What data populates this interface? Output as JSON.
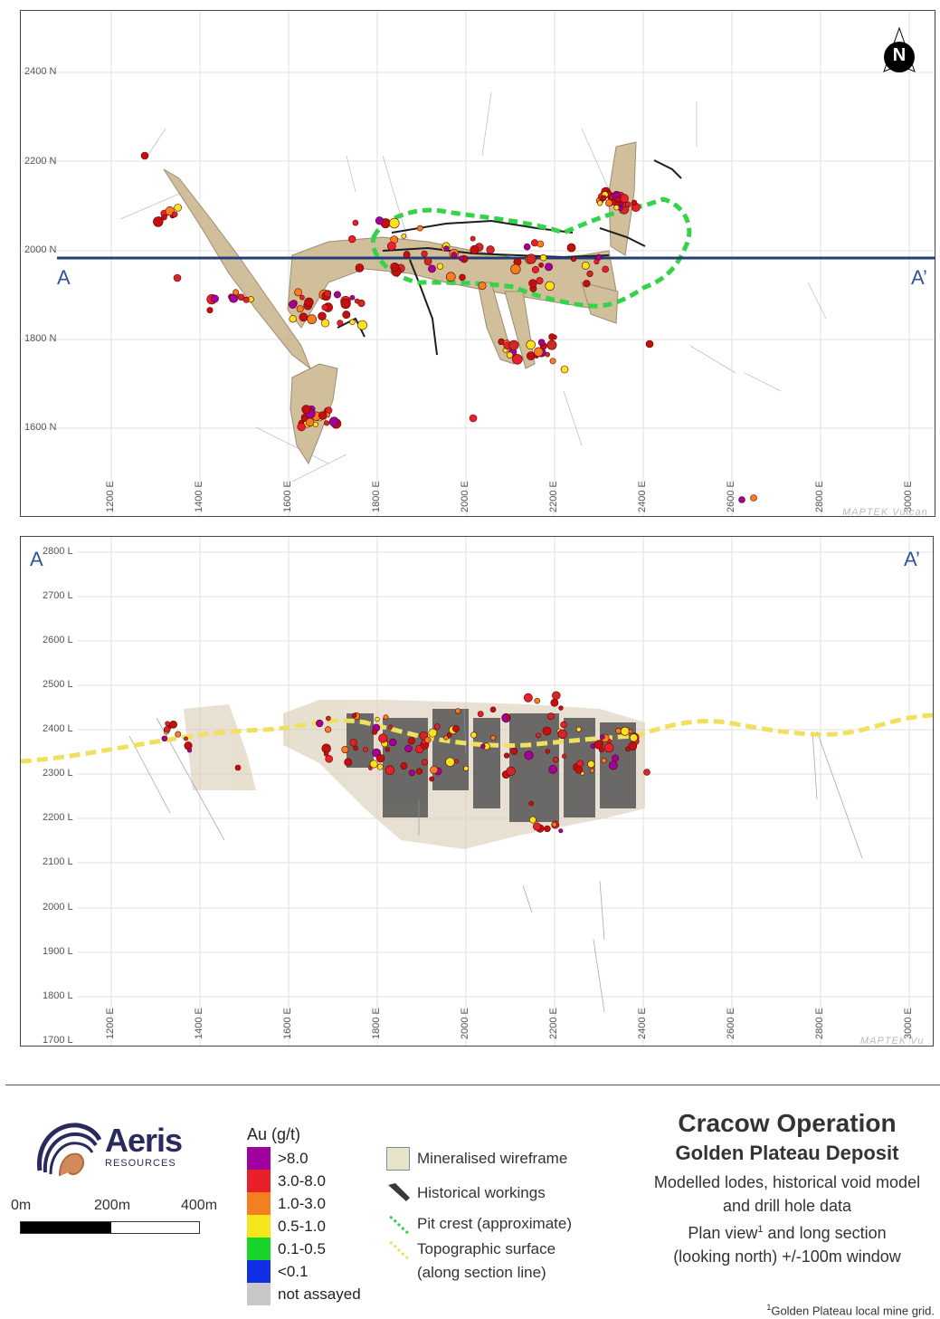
{
  "plan_view": {
    "northings": [
      "2400 N",
      "2200 N",
      "2000 N",
      "1800 N",
      "1600 N"
    ],
    "eastings": [
      "1200 E",
      "1400 E",
      "1600 E",
      "1800 E",
      "2000 E",
      "2200 E",
      "2400 E",
      "2600 E",
      "2800 E",
      "3000 E"
    ],
    "section_start": "A",
    "section_end": "A’",
    "north_label": "N",
    "watermark": "MAPTEK Vulcan"
  },
  "long_section": {
    "levels": [
      "2800 L",
      "2700 L",
      "2600 L",
      "2500 L",
      "2400 L",
      "2300 L",
      "2200 L",
      "2100 L",
      "2000 L",
      "1900 L",
      "1800 L",
      "1700 L"
    ],
    "eastings": [
      "1200 E",
      "1400 E",
      "1600 E",
      "1800 E",
      "2000 E",
      "2200 E",
      "2400 E",
      "2600 E",
      "2800 E",
      "3000 E"
    ],
    "section_start": "A",
    "section_end": "A’",
    "watermark": "MAPTEK Vu"
  },
  "logo": {
    "name": "Aeris",
    "sub": "RESOURCES"
  },
  "scale": {
    "labels": [
      "0m",
      "200m",
      "400m"
    ]
  },
  "au_legend": {
    "title": "Au (g/t)",
    "items": [
      {
        "label": ">8.0",
        "color": "#a000a0"
      },
      {
        "label": "3.0-8.0",
        "color": "#e8202a"
      },
      {
        "label": "1.0-3.0",
        "color": "#f47f20"
      },
      {
        "label": "0.5-1.0",
        "color": "#f5e51b"
      },
      {
        "label": "0.1-0.5",
        "color": "#18d428"
      },
      {
        "label": "<0.1",
        "color": "#1030e8"
      },
      {
        "label": "not assayed",
        "color": "#c8c8c8"
      }
    ]
  },
  "key_legend": {
    "items": [
      {
        "label": "Mineralised wireframe",
        "icon": "wireframe-swatch-icon"
      },
      {
        "label": "Historical workings",
        "icon": "workings-icon"
      },
      {
        "label": "Pit crest (approximate)",
        "icon": "pit-crest-line-icon"
      },
      {
        "label": "Topographic surface",
        "label2": "(along section line)",
        "icon": "topo-surface-line-icon"
      }
    ]
  },
  "title_block": {
    "title": "Cracow Operation",
    "subtitle": "Golden Plateau Deposit",
    "line1": "Modelled lodes, historical void model",
    "line2": "and drill hole data",
    "line3_a": "Plan view",
    "line3_sup": "1",
    "line3_b": " and long section",
    "line4": "(looking north) +/-100m window"
  },
  "footnote": {
    "sup": "1",
    "text": "Golden Plateau local mine grid."
  },
  "colors": {
    "section_line": "#1f3f77",
    "pit_crest": "#2ecc40",
    "topo": "#f0e060",
    "wireframe": "#c8b48a",
    "workings": "#4a4a4a"
  }
}
